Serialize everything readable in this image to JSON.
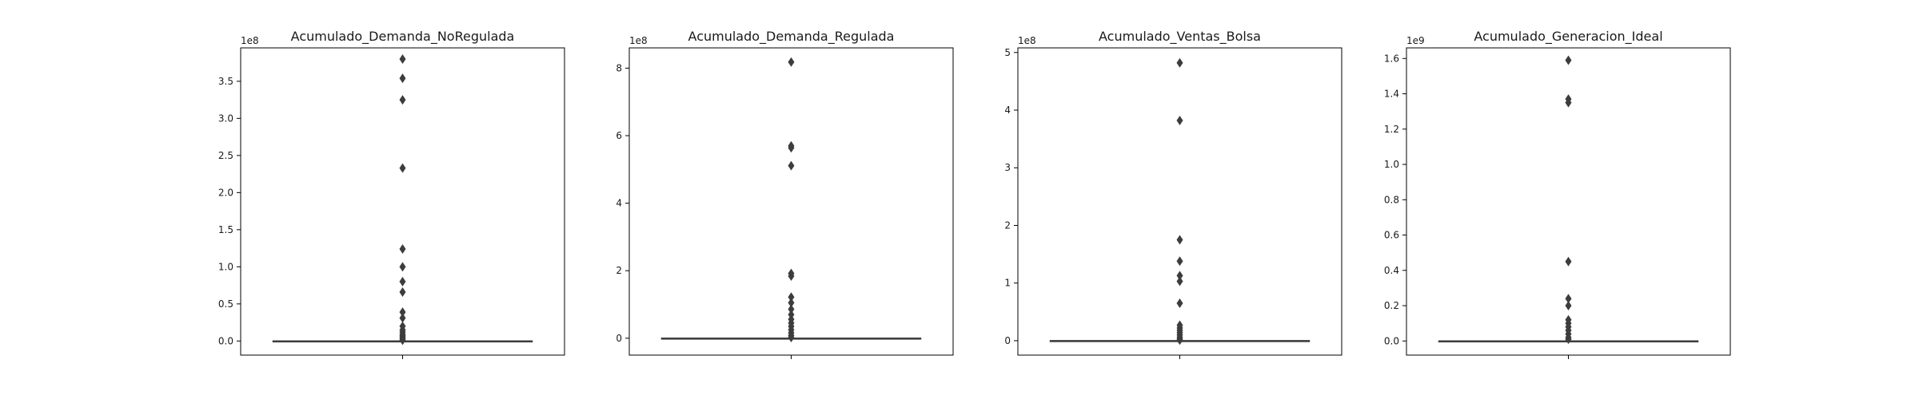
{
  "chart_data": [
    {
      "type": "box",
      "title": "Acumulado_Demanda_NoRegulada",
      "xlabel": "",
      "ylabel": "",
      "scale_label": "1e8",
      "ylim": [
        -0.19,
        3.95
      ],
      "yticks": [
        0.0,
        0.5,
        1.0,
        1.5,
        2.0,
        2.5,
        3.0,
        3.5
      ],
      "ytick_labels": [
        "0.0",
        "0.5",
        "1.0",
        "1.5",
        "2.0",
        "2.5",
        "3.0",
        "3.5"
      ],
      "box": {
        "q1": 0,
        "median": 0,
        "q3": 0,
        "whisker_low": 0,
        "whisker_high": 0
      },
      "outliers": [
        3.8,
        3.54,
        3.25,
        2.33,
        1.24,
        1.0,
        0.8,
        0.66,
        0.39,
        0.31,
        0.2,
        0.15,
        0.12,
        0.09,
        0.07,
        0.05,
        0.03,
        0.01
      ]
    },
    {
      "type": "box",
      "title": "Acumulado_Demanda_Regulada",
      "xlabel": "",
      "ylabel": "",
      "scale_label": "1e8",
      "ylim": [
        -0.5,
        8.6
      ],
      "yticks": [
        0,
        2,
        4,
        6,
        8
      ],
      "ytick_labels": [
        "0",
        "2",
        "4",
        "6",
        "8"
      ],
      "box": {
        "q1": 0,
        "median": 0,
        "q3": 0,
        "whisker_low": 0,
        "whisker_high": 0
      },
      "outliers": [
        8.18,
        5.7,
        5.64,
        5.11,
        1.92,
        1.84,
        1.22,
        1.05,
        0.86,
        0.7,
        0.56,
        0.45,
        0.35,
        0.25,
        0.16,
        0.08,
        0.02
      ]
    },
    {
      "type": "box",
      "title": "Acumulado_Ventas_Bolsa",
      "xlabel": "",
      "ylabel": "",
      "scale_label": "1e8",
      "ylim": [
        -0.25,
        5.08
      ],
      "yticks": [
        0,
        1,
        2,
        3,
        4,
        5
      ],
      "ytick_labels": [
        "0",
        "1",
        "2",
        "3",
        "4",
        "5"
      ],
      "box": {
        "q1": 0,
        "median": 0,
        "q3": 0,
        "whisker_low": 0,
        "whisker_high": 0
      },
      "outliers": [
        4.82,
        3.82,
        1.75,
        1.38,
        1.13,
        1.03,
        0.65,
        0.27,
        0.22,
        0.18,
        0.14,
        0.1,
        0.06,
        0.03,
        0.01
      ]
    },
    {
      "type": "box",
      "title": "Acumulado_Generacion_Ideal",
      "xlabel": "",
      "ylabel": "",
      "scale_label": "1e9",
      "ylim": [
        -0.08,
        1.66
      ],
      "yticks": [
        0.0,
        0.2,
        0.4,
        0.6,
        0.8,
        1.0,
        1.2,
        1.4,
        1.6
      ],
      "ytick_labels": [
        "0.0",
        "0.2",
        "0.4",
        "0.6",
        "0.8",
        "1.0",
        "1.2",
        "1.4",
        "1.6"
      ],
      "box": {
        "q1": 0,
        "median": 0,
        "q3": 0,
        "whisker_low": 0,
        "whisker_high": 0
      },
      "outliers": [
        1.59,
        1.37,
        1.35,
        0.45,
        0.24,
        0.2,
        0.12,
        0.1,
        0.08,
        0.06,
        0.04,
        0.02,
        0.01
      ]
    }
  ]
}
